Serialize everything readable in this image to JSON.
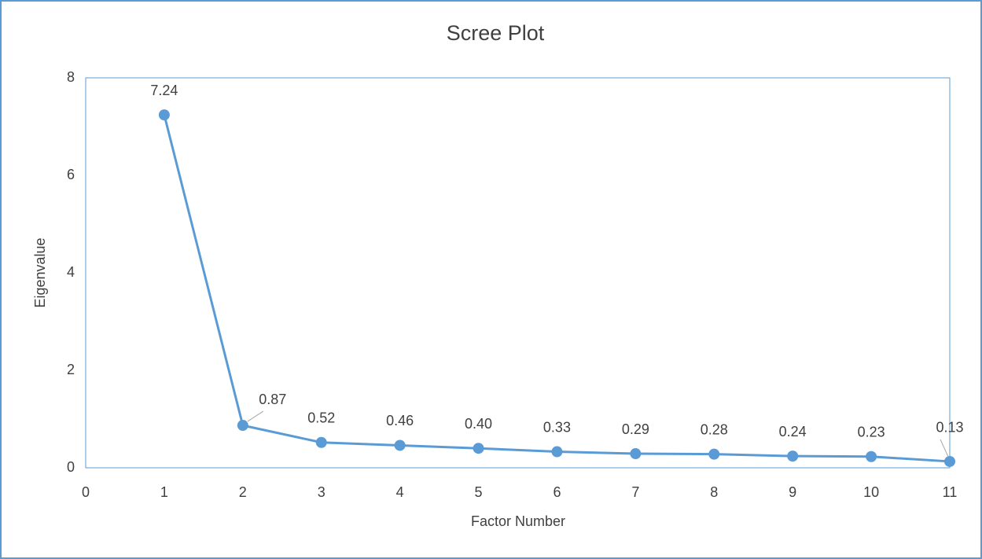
{
  "chart_data": {
    "type": "line",
    "title": "Scree Plot",
    "x_label": "Factor Number",
    "y_label": "Eigenvalue",
    "x": [
      1,
      2,
      3,
      4,
      5,
      6,
      7,
      8,
      9,
      10,
      11
    ],
    "values": [
      7.24,
      0.87,
      0.52,
      0.46,
      0.4,
      0.33,
      0.29,
      0.28,
      0.24,
      0.23,
      0.13
    ],
    "value_labels": [
      "7.24",
      "0.87",
      "0.52",
      "0.46",
      "0.40",
      "0.33",
      "0.29",
      "0.28",
      "0.24",
      "0.23",
      "0.13"
    ],
    "color": "#5b9bd5",
    "markers": true,
    "xlim": [
      0,
      11
    ],
    "xticks": [
      0,
      1,
      2,
      3,
      4,
      5,
      6,
      7,
      8,
      9,
      10,
      11
    ],
    "ylim": [
      0,
      8
    ],
    "yticks": [
      0,
      2,
      4,
      6,
      8
    ],
    "grid": false
  }
}
